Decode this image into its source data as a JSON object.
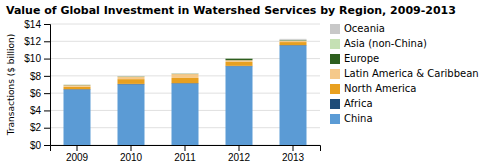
{
  "chart_data": {
    "type": "bar",
    "stacked": true,
    "title": "Value of Global Investment in Watershed Services by Region, 2009-2013",
    "ylabel": "Transactions ($ billion)",
    "categories": [
      "2009",
      "2010",
      "2011",
      "2012",
      "2013"
    ],
    "series": [
      {
        "name": "China",
        "color": "#5b9bd5",
        "values": [
          6.4,
          7.0,
          7.1,
          9.1,
          11.5
        ]
      },
      {
        "name": "Africa",
        "color": "#1e4c78",
        "values": [
          0.06,
          0.07,
          0.06,
          0.06,
          0.06
        ]
      },
      {
        "name": "North America",
        "color": "#e8a020",
        "values": [
          0.28,
          0.55,
          0.6,
          0.45,
          0.35
        ]
      },
      {
        "name": "Latin America & Caribbean",
        "color": "#f5c98a",
        "values": [
          0.18,
          0.28,
          0.45,
          0.2,
          0.15
        ]
      },
      {
        "name": "Europe",
        "color": "#2e5f1e",
        "values": [
          0.03,
          0.03,
          0.03,
          0.18,
          0.06
        ]
      },
      {
        "name": "Asia (non-China)",
        "color": "#c5e0b4",
        "values": [
          0.02,
          0.02,
          0.02,
          0.02,
          0.06
        ]
      },
      {
        "name": "Oceania",
        "color": "#c8c8c8",
        "values": [
          0.02,
          0.02,
          0.02,
          0.02,
          0.1
        ]
      }
    ],
    "ylim": [
      0,
      14
    ],
    "yticks": [
      {
        "value": 0,
        "label": "$0"
      },
      {
        "value": 2,
        "label": "$2"
      },
      {
        "value": 4,
        "label": "$4"
      },
      {
        "value": 6,
        "label": "$6"
      },
      {
        "value": 8,
        "label": "$8"
      },
      {
        "value": 10,
        "label": "$10"
      },
      {
        "value": 12,
        "label": "$12"
      },
      {
        "value": 14,
        "label": "$14"
      }
    ],
    "grid": true,
    "legend": "right"
  }
}
